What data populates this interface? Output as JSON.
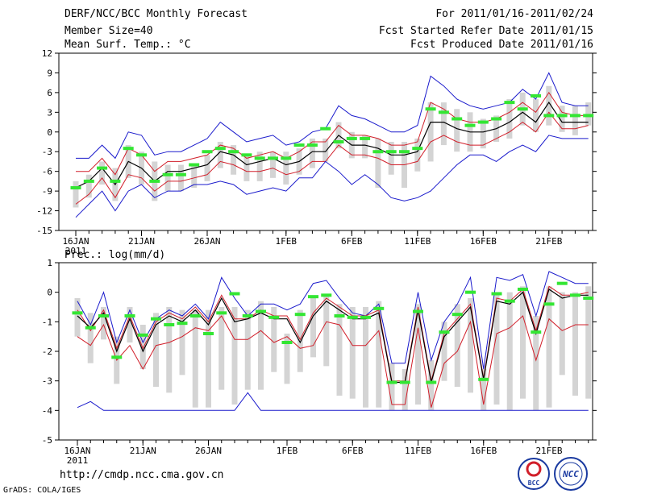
{
  "header": {
    "title": "DERF/NCC/BCC Monthly Forecast",
    "member_size": "Member Size=40",
    "period": "For 2011/01/16-2011/02/24",
    "fcst_started": "Fcst Started Refer Date 2011/01/15",
    "fcst_produced": "Fcst Produced Date 2011/01/16"
  },
  "footer": {
    "url": "http://cmdp.ncc.cma.gov.cn",
    "credit": "GrADS: COLA/IGES",
    "logo_left": "BCC",
    "logo_right": "NCC"
  },
  "colors": {
    "box": "#d4d4d4",
    "spread": "#1a1acc",
    "sd": "#d11f2a",
    "mean": "#000000",
    "obs": "#33e633"
  },
  "chart_data": [
    {
      "type": "line",
      "title": "Mean Surf. Temp.: °C",
      "ylim": [
        -15,
        12
      ],
      "yticks": [
        12,
        9,
        6,
        3,
        0,
        -3,
        -6,
        -9,
        -12,
        -15
      ],
      "ytick_labels": [
        "12",
        "9",
        "6",
        "3",
        "0",
        "-3",
        "-6",
        "-9",
        "-12",
        "-15"
      ],
      "x_tick_days": [
        0,
        5,
        10,
        16,
        21,
        26,
        31,
        36
      ],
      "x_tick_labels": [
        "16JAN",
        "21JAN",
        "26JAN",
        "1FEB",
        "6FEB",
        "11FEB",
        "16FEB",
        "21FEB"
      ],
      "x_year_label": "2011",
      "days": 40,
      "series": [
        {
          "name": "max",
          "values": [
            -4,
            -4,
            -2,
            -4,
            0,
            -0.5,
            -3.5,
            -3,
            -3,
            -2,
            -1,
            1.5,
            0,
            -1.5,
            -1,
            -0.5,
            -2,
            -1.5,
            0,
            0.5,
            4,
            2.5,
            2,
            1,
            0,
            0,
            1,
            8.5,
            7,
            5,
            4,
            3.5,
            4,
            4.5,
            6.5,
            5,
            9,
            4.5,
            4,
            4
          ]
        },
        {
          "name": "upper_sd",
          "values": [
            -6,
            -6,
            -4,
            -6.5,
            -2.5,
            -3.5,
            -6,
            -4.5,
            -4.5,
            -4,
            -3.5,
            -2,
            -2.5,
            -4,
            -3.5,
            -3,
            -4,
            -3,
            -1.5,
            -1.5,
            1,
            -0.5,
            -0.5,
            -1,
            -2,
            -2,
            -1.5,
            4.5,
            3.5,
            2,
            1.5,
            1.5,
            2,
            3,
            4.5,
            3,
            6,
            3,
            2.5,
            2.5
          ]
        },
        {
          "name": "mean",
          "values": [
            -8.5,
            -7.5,
            -5.5,
            -8,
            -4.5,
            -5.5,
            -7.5,
            -6,
            -6,
            -5.5,
            -5,
            -3,
            -3.5,
            -5,
            -4.5,
            -4,
            -5,
            -4.5,
            -3,
            -3,
            -0.5,
            -2,
            -2,
            -2.5,
            -3.5,
            -3.5,
            -3,
            1.5,
            1.5,
            0.5,
            0,
            0,
            0.5,
            1.5,
            3,
            1.5,
            4.5,
            1.5,
            1.5,
            1.5
          ]
        },
        {
          "name": "lower_sd",
          "values": [
            -11,
            -9.5,
            -7,
            -10,
            -6.5,
            -7,
            -9,
            -7.5,
            -7.5,
            -7,
            -6.5,
            -4.5,
            -5,
            -6,
            -6,
            -5.5,
            -6.5,
            -6,
            -4.5,
            -4.5,
            -2,
            -3.5,
            -3.5,
            -4,
            -5,
            -5,
            -4.5,
            -1.5,
            -0.5,
            -1.5,
            -2,
            -2,
            -1,
            0,
            1.5,
            0,
            3,
            0.5,
            0.5,
            1
          ]
        },
        {
          "name": "min",
          "values": [
            -13,
            -11,
            -9,
            -12,
            -9,
            -8,
            -10,
            -9,
            -9,
            -8,
            -8,
            -7.5,
            -8,
            -9.5,
            -9,
            -8.5,
            -9,
            -7,
            -7,
            -4.5,
            -6,
            -8,
            -6.5,
            -8,
            -10,
            -10.5,
            -10,
            -9,
            -7,
            -5,
            -3.5,
            -3.5,
            -4.5,
            -3,
            -2,
            -3,
            -0.5,
            -1,
            -1,
            -1
          ]
        },
        {
          "name": "observed",
          "values": [
            -8.5,
            -7.5,
            -5.5,
            -7.5,
            -2.5,
            -3.5,
            -7.5,
            -6.5,
            -6.5,
            -5,
            -3,
            -2.5,
            -3,
            -3.5,
            -4,
            -4,
            -4,
            -2,
            -2,
            0.5,
            -1.5,
            -1,
            -1,
            -3,
            -3,
            -3,
            -2.5,
            3.5,
            3,
            2,
            1,
            1.5,
            2,
            4.5,
            3.5,
            5.5,
            2.5,
            2.5,
            2.5,
            2.5
          ]
        }
      ],
      "box_ranges": [
        [
          -11.5,
          -7.5
        ],
        [
          -10,
          -6.5
        ],
        [
          -8,
          -4.5
        ],
        [
          -10.5,
          -5.5
        ],
        [
          -7,
          -2
        ],
        [
          -8,
          -3
        ],
        [
          -10.5,
          -4.5
        ],
        [
          -9,
          -5
        ],
        [
          -9,
          -5
        ],
        [
          -8.5,
          -5
        ],
        [
          -7.5,
          -3.5
        ],
        [
          -5.5,
          -1.5
        ],
        [
          -6.5,
          -2
        ],
        [
          -7.5,
          -3.5
        ],
        [
          -7.5,
          -3
        ],
        [
          -7,
          -3
        ],
        [
          -8,
          -3
        ],
        [
          -6.5,
          -2.5
        ],
        [
          -5.5,
          -1
        ],
        [
          -4.5,
          -1
        ],
        [
          -2.5,
          1.5
        ],
        [
          -4,
          0
        ],
        [
          -4,
          -0.5
        ],
        [
          -8.5,
          -1
        ],
        [
          -6.5,
          -1.5
        ],
        [
          -8.5,
          -1.5
        ],
        [
          -6,
          -1
        ],
        [
          -4.5,
          4.5
        ],
        [
          -2,
          4.5
        ],
        [
          -3,
          3.5
        ],
        [
          -3,
          3
        ],
        [
          -2.5,
          2
        ],
        [
          -1.5,
          2.5
        ],
        [
          -1,
          5
        ],
        [
          1,
          6
        ],
        [
          0,
          5
        ],
        [
          1,
          7
        ],
        [
          0,
          4
        ],
        [
          -0.5,
          4
        ],
        [
          1,
          4.5
        ]
      ]
    },
    {
      "type": "line",
      "title": "Prec.: log(mm/d)",
      "ylim": [
        -5,
        1
      ],
      "yticks": [
        1,
        0,
        -1,
        -2,
        -3,
        -4,
        -5
      ],
      "ytick_labels": [
        "1",
        "0",
        "-1",
        "-2",
        "-3",
        "-4",
        "-5"
      ],
      "x_tick_days": [
        0,
        5,
        10,
        16,
        21,
        26,
        31,
        36
      ],
      "x_tick_labels": [
        "16JAN",
        "21JAN",
        "26JAN",
        "1FEB",
        "6FEB",
        "11FEB",
        "16FEB",
        "21FEB"
      ],
      "x_year_label": "2011",
      "days": 40,
      "series": [
        {
          "name": "max",
          "values": [
            -0.3,
            -1.1,
            0,
            -1.7,
            -0.6,
            -1.7,
            -0.9,
            -0.6,
            -0.8,
            -0.4,
            -0.9,
            0.5,
            -0.2,
            -0.8,
            -0.4,
            -0.4,
            -0.6,
            -0.4,
            0.3,
            0.4,
            -0.2,
            -0.7,
            -0.8,
            -0.4,
            -2.4,
            -2.4,
            0,
            -2.3,
            -1,
            -0.4,
            0.5,
            -2.6,
            0.5,
            0.4,
            0.6,
            -0.8,
            0.7,
            0.5,
            0.3,
            0.3
          ]
        },
        {
          "name": "upper_sd",
          "values": [
            -0.6,
            -1.3,
            -0.6,
            -1.9,
            -0.8,
            -1.9,
            -1.0,
            -0.7,
            -0.9,
            -0.5,
            -1.0,
            -0.1,
            -0.9,
            -0.9,
            -0.6,
            -0.8,
            -0.8,
            -1.6,
            -0.7,
            -0.2,
            -0.5,
            -0.8,
            -0.8,
            -0.6,
            -3.0,
            -3.0,
            -0.5,
            -3.0,
            -1.4,
            -0.9,
            -0.4,
            -2.9,
            -0.2,
            -0.3,
            0.1,
            -1.3,
            0.2,
            -0.1,
            -0.1,
            0.0
          ]
        },
        {
          "name": "mean",
          "values": [
            -0.8,
            -1.2,
            -0.7,
            -2.0,
            -0.9,
            -2.0,
            -1.1,
            -0.8,
            -1.0,
            -0.6,
            -1.1,
            -0.2,
            -1.0,
            -0.9,
            -0.7,
            -0.9,
            -0.9,
            -1.7,
            -0.8,
            -0.3,
            -0.6,
            -0.9,
            -0.9,
            -0.7,
            -3.05,
            -3.05,
            -0.6,
            -3.05,
            -1.5,
            -1.0,
            -0.5,
            -2.95,
            -0.3,
            -0.4,
            0.0,
            -1.4,
            0.1,
            -0.2,
            -0.1,
            -0.1
          ]
        },
        {
          "name": "lower_sd",
          "values": [
            -1.5,
            -1.8,
            -1.1,
            -2.3,
            -1.8,
            -2.6,
            -1.8,
            -1.7,
            -1.5,
            -1.2,
            -1.3,
            -0.8,
            -1.6,
            -1.6,
            -1.3,
            -1.7,
            -1.5,
            -1.9,
            -1.8,
            -1.0,
            -1.1,
            -1.8,
            -1.8,
            -1.3,
            -3.8,
            -3.8,
            -1.2,
            -3.9,
            -2.4,
            -2.0,
            -1.0,
            -3.8,
            -1.4,
            -1.2,
            -0.8,
            -2.3,
            -0.9,
            -1.3,
            -1.1,
            -1.1
          ]
        },
        {
          "name": "min",
          "values": [
            -3.9,
            -3.7,
            -4.0,
            -4.0,
            -4.0,
            -4.0,
            -4.0,
            -4.0,
            -4.0,
            -4.0,
            -4.0,
            -4.0,
            -4.0,
            -3.4,
            -4.0,
            -4.0,
            -4.0,
            -4.0,
            -4.0,
            -4.0,
            -4.0,
            -4.0,
            -4.0,
            -4.0,
            -4.0,
            -4.0,
            -4.0,
            -4.0,
            -4.0,
            -4.0,
            -4.0,
            -4.0,
            -4.0,
            -4.0,
            -4.0,
            -4.0,
            -4.0,
            -4.0,
            -4.0,
            -4.0
          ]
        },
        {
          "name": "observed",
          "values": [
            -0.7,
            -1.2,
            -0.8,
            -2.2,
            -0.8,
            -1.45,
            -0.9,
            -1.1,
            -1.05,
            -0.8,
            -1.4,
            -0.7,
            -0.05,
            -0.8,
            -0.65,
            -0.85,
            -1.7,
            -0.75,
            -0.15,
            -0.1,
            -0.8,
            -0.85,
            -0.85,
            -0.55,
            -3.05,
            -3.05,
            -0.65,
            -3.05,
            -1.35,
            -0.75,
            0.0,
            -2.95,
            -0.05,
            -0.3,
            0.1,
            -1.35,
            -0.4,
            0.3,
            -0.1,
            -0.2
          ]
        }
      ],
      "box_ranges": [
        [
          -1.5,
          -0.2
        ],
        [
          -2.4,
          -0.7
        ],
        [
          -1.6,
          -0.5
        ],
        [
          -3.1,
          -1.5
        ],
        [
          -1.7,
          -0.5
        ],
        [
          -2.6,
          -1.1
        ],
        [
          -3.2,
          -0.7
        ],
        [
          -3.4,
          -0.5
        ],
        [
          -2.8,
          -0.6
        ],
        [
          -3.9,
          -0.6
        ],
        [
          -3.9,
          -0.6
        ],
        [
          -3.3,
          -0.5
        ],
        [
          -3.8,
          -0.5
        ],
        [
          -3.3,
          -0.6
        ],
        [
          -3.3,
          -0.3
        ],
        [
          -2.7,
          -0.5
        ],
        [
          -3.1,
          -1.4
        ],
        [
          -2.7,
          -0.6
        ],
        [
          -2.2,
          -0.2
        ],
        [
          -2.5,
          -0.1
        ],
        [
          -3.5,
          -0.4
        ],
        [
          -3.6,
          -0.5
        ],
        [
          -3.9,
          -0.5
        ],
        [
          -3.9,
          -0.3
        ],
        [
          -4.0,
          -2.4
        ],
        [
          -4.0,
          -2.6
        ],
        [
          -3.8,
          -0.4
        ],
        [
          -4.0,
          -2.3
        ],
        [
          -3.0,
          -1.0
        ],
        [
          -3.2,
          -0.4
        ],
        [
          -3.4,
          -0.2
        ],
        [
          -4.0,
          -2.6
        ],
        [
          -3.8,
          -0.1
        ],
        [
          -4.0,
          0.0
        ],
        [
          -3.6,
          0.2
        ],
        [
          -4.0,
          -0.8
        ],
        [
          -3.9,
          0.2
        ],
        [
          -2.8,
          0.0
        ],
        [
          -3.5,
          0.0
        ],
        [
          -3.6,
          0.2
        ]
      ]
    }
  ]
}
